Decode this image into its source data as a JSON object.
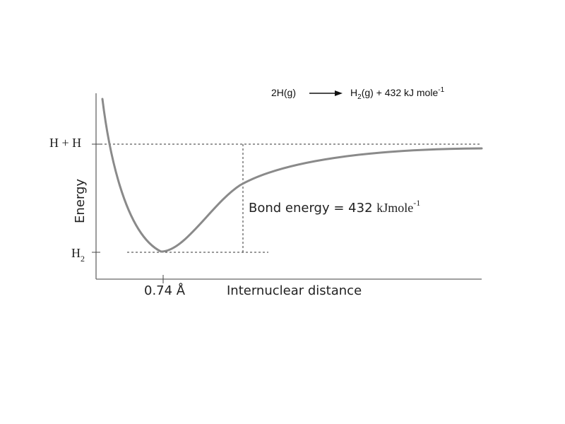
{
  "equation": {
    "reactant": "2H(g)",
    "product_prefix": "H",
    "product_sub": "2",
    "product_suffix": "(g) + 432 kJ mole",
    "product_exp": "-1"
  },
  "axes": {
    "y_label": "Energy",
    "x_label": "Internuclear distance",
    "top_level_label": "H + H",
    "bottom_level_label": "H",
    "bottom_level_sub": "2",
    "x_tick_label": "0.74 Å"
  },
  "annotation": {
    "prefix": "Bond energy = 432 ",
    "unit": "kJmole",
    "exp": "-1"
  },
  "colors": {
    "curve": "#8a8a8a",
    "axis": "#555555",
    "dashes": "#333333",
    "text": "#111111"
  },
  "chart_data": {
    "type": "line",
    "description_values": {
      "equilibrium_distance_angstrom": 0.74,
      "bond_energy_kj_per_mole": 432
    },
    "series": [
      {
        "values": []
      }
    ]
  }
}
